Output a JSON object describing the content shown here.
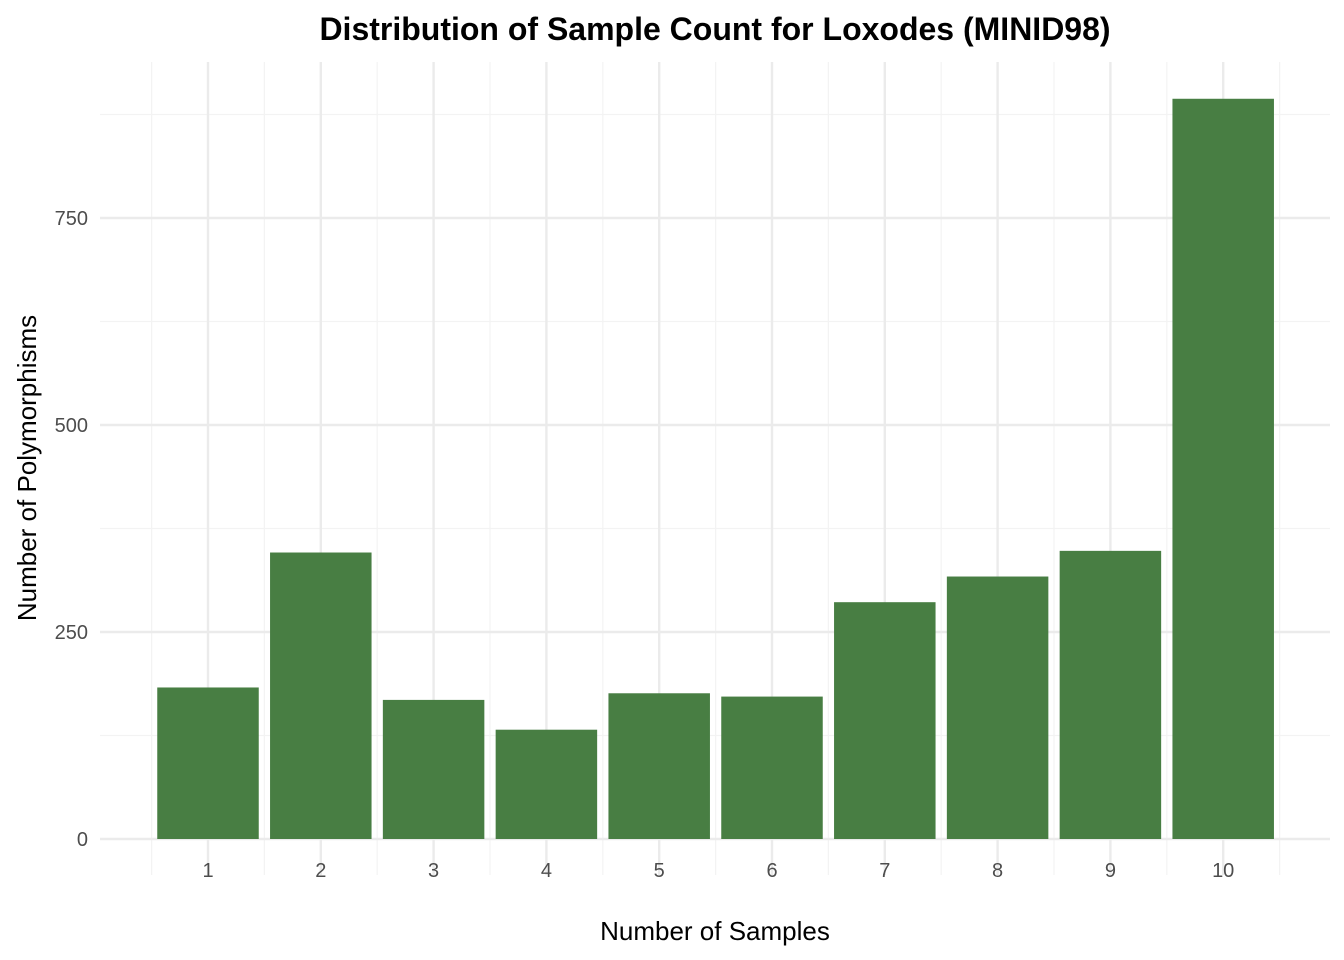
{
  "chart_data": {
    "type": "bar",
    "title": "Distribution of Sample Count for  Loxodes (MINID98)",
    "xlabel": "Number of Samples",
    "ylabel": "Number of Polymorphisms",
    "categories": [
      "1",
      "2",
      "3",
      "4",
      "5",
      "6",
      "7",
      "8",
      "9",
      "10"
    ],
    "values": [
      183,
      346,
      168,
      132,
      176,
      172,
      286,
      317,
      348,
      894
    ],
    "ylim": [
      0,
      960
    ],
    "yticks": [
      0,
      250,
      500,
      750
    ],
    "yticks_minor": [
      125,
      375,
      625,
      875
    ],
    "grid": true,
    "legend": "none",
    "colors": {
      "bar": "#487e43",
      "grid_major": "#ebebeb",
      "grid_minor": "#f3f3f3"
    }
  }
}
